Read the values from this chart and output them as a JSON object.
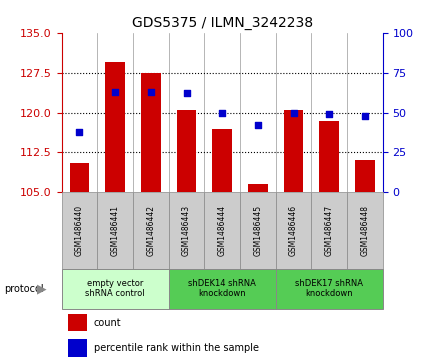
{
  "title": "GDS5375 / ILMN_3242238",
  "samples": [
    "GSM1486440",
    "GSM1486441",
    "GSM1486442",
    "GSM1486443",
    "GSM1486444",
    "GSM1486445",
    "GSM1486446",
    "GSM1486447",
    "GSM1486448"
  ],
  "counts": [
    110.5,
    129.5,
    127.5,
    120.5,
    117.0,
    106.5,
    120.5,
    118.5,
    111.0
  ],
  "percentile_ranks": [
    38,
    63,
    63,
    62,
    50,
    42,
    50,
    49,
    48
  ],
  "ylim_left": [
    105,
    135
  ],
  "ylim_right": [
    0,
    100
  ],
  "yticks_left": [
    105,
    112.5,
    120,
    127.5,
    135
  ],
  "yticks_right": [
    0,
    25,
    50,
    75,
    100
  ],
  "bar_color": "#cc0000",
  "dot_color": "#0000cc",
  "bar_width": 0.55,
  "group_starts": [
    0,
    3,
    6
  ],
  "group_ends": [
    3,
    6,
    9
  ],
  "group_labels": [
    "empty vector\nshRNA control",
    "shDEK14 shRNA\nknockdown",
    "shDEK17 shRNA\nknockdown"
  ],
  "group_colors": [
    "#ccffcc",
    "#55cc55",
    "#55cc55"
  ],
  "protocol_label": "protocol",
  "tick_color_left": "#cc0000",
  "tick_color_right": "#0000cc",
  "sample_box_color": "#cccccc",
  "separator_color": "#999999"
}
